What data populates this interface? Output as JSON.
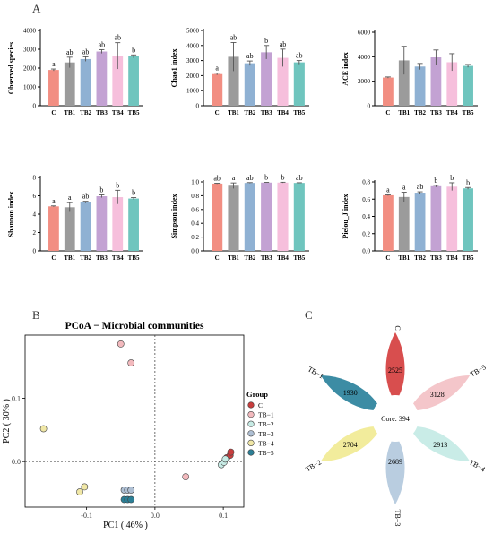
{
  "panels": {
    "a": "A",
    "b": "B",
    "c": "C"
  },
  "colors": {
    "bars": [
      "#f28e82",
      "#9b9b9b",
      "#8fb1d3",
      "#c3a2d3",
      "#f6bfdc",
      "#6fc5be"
    ],
    "pcoa": [
      "#c83e3e",
      "#f2b9bd",
      "#c7ebe5",
      "#aebfd3",
      "#f0e7a6",
      "#2c7f96"
    ],
    "petals": [
      "#d84e4e",
      "#f4c6ca",
      "#c9ece7",
      "#b9cde0",
      "#f2ec9c",
      "#3c8ca4"
    ]
  },
  "chart_data": [
    {
      "type": "bar",
      "panel": "A",
      "ylabel": "Observed species",
      "categories": [
        "C",
        "TB1",
        "TB2",
        "TB3",
        "TB4",
        "TB5"
      ],
      "values": [
        1900,
        2300,
        2480,
        2880,
        2650,
        2620
      ],
      "errors": [
        50,
        280,
        120,
        100,
        700,
        80
      ],
      "letters": [
        "a",
        "ab",
        "ab",
        "ab",
        "ab",
        "b"
      ],
      "ylim": [
        0,
        4000
      ],
      "yticks": [
        "0",
        "1000",
        "2000",
        "3000",
        "4000"
      ]
    },
    {
      "type": "bar",
      "panel": "A",
      "ylabel": "Chao1 index",
      "categories": [
        "C",
        "TB1",
        "TB2",
        "TB3",
        "TB4",
        "TB5"
      ],
      "values": [
        2100,
        3250,
        2820,
        3550,
        3180,
        2880
      ],
      "errors": [
        60,
        950,
        150,
        450,
        580,
        120
      ],
      "letters": [
        "a",
        "ab",
        "ab",
        "b",
        "ab",
        "ab"
      ],
      "ylim": [
        0,
        5000
      ],
      "yticks": [
        "0",
        "1000",
        "2000",
        "3000",
        "4000",
        "5000"
      ]
    },
    {
      "type": "bar",
      "panel": "A",
      "ylabel": "ACE index",
      "categories": [
        "C",
        "TB1",
        "TB2",
        "TB3",
        "TB4",
        "TB5"
      ],
      "values": [
        2300,
        3700,
        3200,
        3950,
        3550,
        3250
      ],
      "errors": [
        50,
        1150,
        250,
        600,
        700,
        120
      ],
      "letters": [
        "",
        "",
        "",
        "",
        "",
        ""
      ],
      "ylim": [
        0,
        6000
      ],
      "yticks": [
        "0",
        "2000",
        "4000",
        "6000"
      ]
    },
    {
      "type": "bar",
      "panel": "A",
      "ylabel": "Shannon index",
      "categories": [
        "C",
        "TB1",
        "TB2",
        "TB3",
        "TB4",
        "TB5"
      ],
      "values": [
        4.85,
        4.75,
        5.3,
        5.95,
        5.85,
        5.7
      ],
      "errors": [
        0.05,
        0.5,
        0.1,
        0.15,
        0.75,
        0.1
      ],
      "letters": [
        "a",
        "a",
        "ab",
        "b",
        "b",
        "b"
      ],
      "ylim": [
        0,
        8
      ],
      "yticks": [
        "0",
        "2",
        "4",
        "6",
        "8"
      ]
    },
    {
      "type": "bar",
      "panel": "A",
      "ylabel": "Simpson index",
      "categories": [
        "C",
        "TB1",
        "TB2",
        "TB3",
        "TB4",
        "TB5"
      ],
      "values": [
        0.975,
        0.945,
        0.985,
        0.99,
        0.99,
        0.985
      ],
      "errors": [
        0.005,
        0.04,
        0.005,
        0.003,
        0.005,
        0.003
      ],
      "letters": [
        "ab",
        "a",
        "ab",
        "b",
        "b",
        "ab"
      ],
      "ylim": [
        0,
        1.0
      ],
      "yticks": [
        "0.0",
        "0.2",
        "0.4",
        "0.6",
        "0.8",
        "1.0"
      ]
    },
    {
      "type": "bar",
      "panel": "A",
      "ylabel": "Pielou_J index",
      "categories": [
        "C",
        "TB1",
        "TB2",
        "TB3",
        "TB4",
        "TB5"
      ],
      "values": [
        0.645,
        0.625,
        0.675,
        0.75,
        0.745,
        0.725
      ],
      "errors": [
        0.005,
        0.055,
        0.01,
        0.01,
        0.045,
        0.01
      ],
      "letters": [
        "a",
        "a",
        "ab",
        "b",
        "b",
        "b"
      ],
      "ylim": [
        0,
        0.8
      ],
      "yticks": [
        "0.0",
        "0.2",
        "0.4",
        "0.6",
        "0.8"
      ]
    },
    {
      "type": "scatter",
      "panel": "B",
      "title": "PCoA − Microbial communities",
      "xlabel": "PC1 ( 46% )",
      "ylabel": "PC2 ( 30% )",
      "xlim": [
        -0.19,
        0.13
      ],
      "ylim": [
        -0.072,
        0.2
      ],
      "xticks": [
        -0.1,
        0.0,
        0.1
      ],
      "xtick_labels": [
        "-0.1",
        "0.0",
        "0.1"
      ],
      "yticks": [
        0.0,
        0.1
      ],
      "ytick_labels": [
        "0.0",
        "0.1"
      ],
      "legend_title": "Group",
      "legend_position": "right",
      "series": [
        {
          "name": "C",
          "points": [
            [
              0.105,
              0.006
            ],
            [
              0.11,
              0.01
            ],
            [
              0.111,
              0.015
            ]
          ]
        },
        {
          "name": "TB−1",
          "points": [
            [
              -0.05,
              0.186
            ],
            [
              -0.035,
              0.156
            ],
            [
              0.045,
              -0.024
            ]
          ]
        },
        {
          "name": "TB−2",
          "points": [
            [
              0.097,
              -0.005
            ],
            [
              0.101,
              -0.001
            ],
            [
              0.103,
              0.004
            ]
          ]
        },
        {
          "name": "TB−3",
          "points": [
            [
              -0.045,
              -0.045
            ],
            [
              -0.04,
              -0.045
            ],
            [
              -0.035,
              -0.045
            ]
          ]
        },
        {
          "name": "TB−4",
          "points": [
            [
              -0.163,
              0.052
            ],
            [
              -0.11,
              -0.048
            ],
            [
              -0.103,
              -0.04
            ]
          ]
        },
        {
          "name": "TB−5",
          "points": [
            [
              -0.045,
              -0.06
            ],
            [
              -0.04,
              -0.06
            ],
            [
              -0.035,
              -0.06
            ]
          ]
        }
      ]
    },
    {
      "type": "flower",
      "panel": "C",
      "core_label": "Core: 394",
      "petals": [
        {
          "name": "C",
          "value": "2525"
        },
        {
          "name": "TB−5",
          "value": "3128"
        },
        {
          "name": "TB−4",
          "value": "2913"
        },
        {
          "name": "TB−3",
          "value": "2689"
        },
        {
          "name": "TB−2",
          "value": "2704"
        },
        {
          "name": "TB−1",
          "value": "1930"
        }
      ]
    }
  ]
}
